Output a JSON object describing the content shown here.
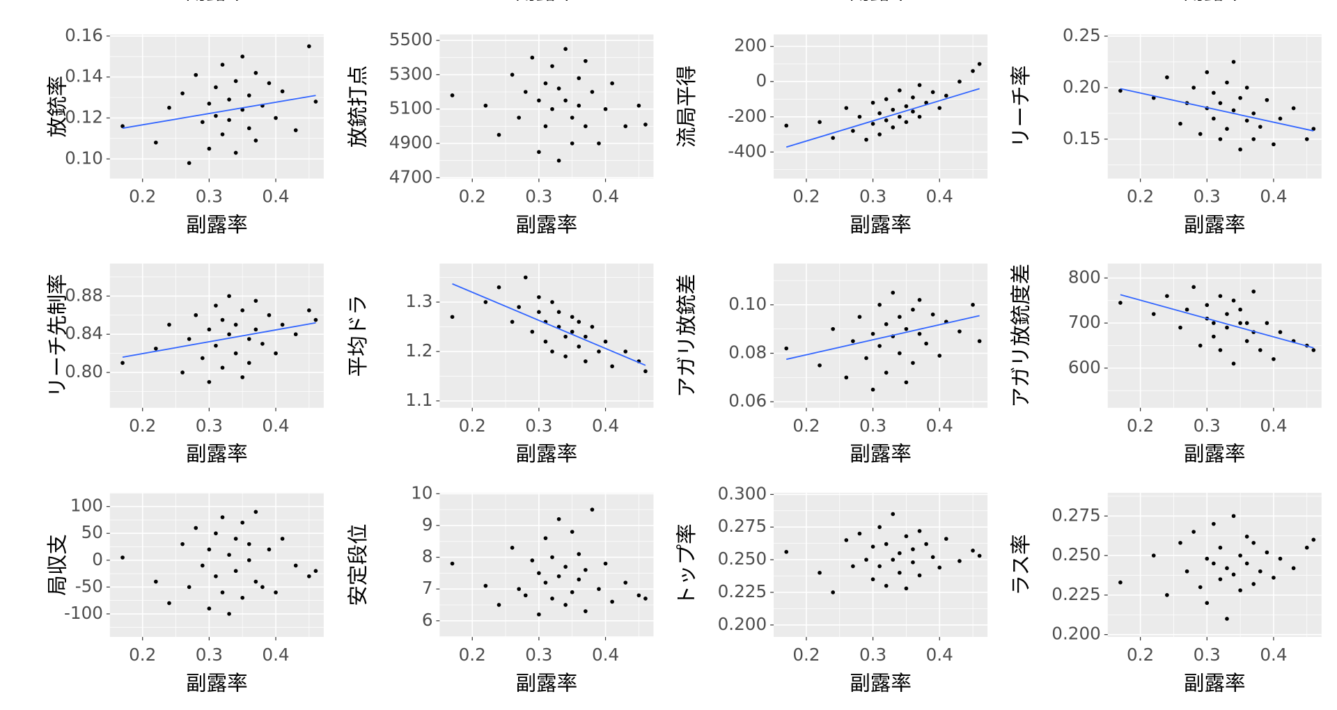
{
  "cropped_top_labels": [
    "副露率",
    "副露率",
    "副露率",
    "副露率"
  ],
  "chart_data": [
    {
      "type": "scatter",
      "x_label": "副露率",
      "y_label": "放銃率",
      "color": "#000000",
      "grid": true,
      "xlim": [
        0.151,
        0.472
      ],
      "xticks": [
        0.2,
        0.3,
        0.4
      ],
      "ylim": [
        0.0904,
        0.1608
      ],
      "yticks": [
        {
          "value": 0.1,
          "label": "0.10"
        },
        0.12,
        0.14,
        0.16
      ],
      "x": [
        0.17,
        0.22,
        0.24,
        0.26,
        0.27,
        0.28,
        0.29,
        0.3,
        0.3,
        0.31,
        0.31,
        0.32,
        0.32,
        0.33,
        0.33,
        0.34,
        0.34,
        0.35,
        0.35,
        0.36,
        0.36,
        0.37,
        0.37,
        0.38,
        0.39,
        0.4,
        0.41,
        0.43,
        0.45,
        0.46
      ],
      "y": [
        0.116,
        0.108,
        0.125,
        0.132,
        0.098,
        0.141,
        0.118,
        0.127,
        0.105,
        0.135,
        0.121,
        0.146,
        0.112,
        0.129,
        0.119,
        0.138,
        0.103,
        0.124,
        0.15,
        0.115,
        0.131,
        0.142,
        0.109,
        0.126,
        0.137,
        0.12,
        0.133,
        0.114,
        0.155,
        0.128
      ],
      "trend": {
        "color": "#3366ff",
        "x": [
          0.17,
          0.46
        ],
        "y": [
          0.115,
          0.131
        ]
      }
    },
    {
      "type": "scatter",
      "x_label": "副露率",
      "y_label": "放銃打点",
      "color": "#000000",
      "grid": true,
      "xlim": [
        0.151,
        0.472
      ],
      "xticks": [
        0.2,
        0.3,
        0.4
      ],
      "ylim": [
        4695,
        5535
      ],
      "yticks": [
        4700,
        4900,
        5100,
        5300,
        5500
      ],
      "x": [
        0.17,
        0.22,
        0.24,
        0.26,
        0.27,
        0.28,
        0.29,
        0.3,
        0.3,
        0.31,
        0.31,
        0.32,
        0.32,
        0.33,
        0.33,
        0.34,
        0.34,
        0.35,
        0.35,
        0.36,
        0.36,
        0.37,
        0.37,
        0.38,
        0.39,
        0.4,
        0.41,
        0.43,
        0.45,
        0.46
      ],
      "y": [
        5180,
        5120,
        4950,
        5300,
        5050,
        5200,
        5400,
        4850,
        5150,
        5250,
        5000,
        5350,
        5100,
        4800,
        5220,
        5150,
        5450,
        5050,
        4900,
        5280,
        5120,
        5380,
        5000,
        5200,
        4900,
        5100,
        5250,
        5000,
        5120,
        5010
      ]
    },
    {
      "type": "scatter",
      "x_label": "副露率",
      "y_label": "流局平得",
      "color": "#000000",
      "grid": true,
      "xlim": [
        0.151,
        0.472
      ],
      "xticks": [
        0.2,
        0.3,
        0.4
      ],
      "ylim": [
        -551,
        268
      ],
      "yticks": [
        -400,
        -200,
        0,
        200
      ],
      "x": [
        0.17,
        0.22,
        0.24,
        0.26,
        0.27,
        0.28,
        0.29,
        0.3,
        0.3,
        0.31,
        0.31,
        0.32,
        0.32,
        0.33,
        0.33,
        0.34,
        0.34,
        0.35,
        0.35,
        0.36,
        0.36,
        0.37,
        0.37,
        0.38,
        0.39,
        0.4,
        0.41,
        0.43,
        0.45,
        0.46
      ],
      "y": [
        -250,
        -230,
        -320,
        -150,
        -280,
        -200,
        -330,
        -120,
        -240,
        -180,
        -300,
        -100,
        -220,
        -160,
        -260,
        -50,
        -200,
        -140,
        -230,
        -90,
        -170,
        -20,
        -200,
        -120,
        -60,
        -150,
        -80,
        0,
        60,
        100
      ],
      "trend": {
        "color": "#3366ff",
        "x": [
          0.17,
          0.46
        ],
        "y": [
          -372,
          -40
        ]
      }
    },
    {
      "type": "scatter",
      "x_label": "副露率",
      "y_label": "リーチ率",
      "color": "#000000",
      "grid": true,
      "xlim": [
        0.151,
        0.472
      ],
      "xticks": [
        0.2,
        0.3,
        0.4
      ],
      "ylim": [
        0.1117,
        0.2517
      ],
      "yticks": [
        0.15,
        {
          "value": 0.2,
          "label": "0.20"
        },
        0.25
      ],
      "x": [
        0.17,
        0.22,
        0.24,
        0.26,
        0.27,
        0.28,
        0.29,
        0.3,
        0.3,
        0.31,
        0.31,
        0.32,
        0.32,
        0.33,
        0.33,
        0.34,
        0.34,
        0.35,
        0.35,
        0.36,
        0.36,
        0.37,
        0.37,
        0.38,
        0.39,
        0.4,
        0.41,
        0.43,
        0.45,
        0.46
      ],
      "y": [
        0.197,
        0.19,
        0.21,
        0.165,
        0.185,
        0.2,
        0.155,
        0.18,
        0.215,
        0.17,
        0.195,
        0.15,
        0.185,
        0.205,
        0.16,
        0.178,
        0.225,
        0.14,
        0.19,
        0.168,
        0.2,
        0.15,
        0.175,
        0.162,
        0.188,
        0.145,
        0.17,
        0.18,
        0.15,
        0.16
      ],
      "trend": {
        "color": "#3366ff",
        "x": [
          0.17,
          0.46
        ],
        "y": [
          0.199,
          0.158
        ]
      }
    },
    {
      "type": "scatter",
      "x_label": "副露率",
      "y_label": "リーチ先制率",
      "color": "#000000",
      "grid": true,
      "xlim": [
        0.151,
        0.472
      ],
      "xticks": [
        0.2,
        0.3,
        0.4
      ],
      "ylim": [
        0.763,
        0.914
      ],
      "yticks": [
        {
          "value": 0.8,
          "label": "0.80"
        },
        0.84,
        0.88
      ],
      "x": [
        0.17,
        0.22,
        0.24,
        0.26,
        0.27,
        0.28,
        0.29,
        0.3,
        0.3,
        0.31,
        0.31,
        0.32,
        0.32,
        0.33,
        0.33,
        0.34,
        0.34,
        0.35,
        0.35,
        0.36,
        0.36,
        0.37,
        0.37,
        0.38,
        0.39,
        0.4,
        0.41,
        0.43,
        0.45,
        0.46
      ],
      "y": [
        0.81,
        0.825,
        0.85,
        0.8,
        0.835,
        0.86,
        0.815,
        0.845,
        0.79,
        0.87,
        0.828,
        0.855,
        0.805,
        0.84,
        0.88,
        0.82,
        0.85,
        0.795,
        0.865,
        0.835,
        0.81,
        0.875,
        0.845,
        0.83,
        0.86,
        0.82,
        0.85,
        0.84,
        0.865,
        0.855
      ],
      "trend": {
        "color": "#3366ff",
        "x": [
          0.17,
          0.46
        ],
        "y": [
          0.816,
          0.852
        ]
      }
    },
    {
      "type": "scatter",
      "x_label": "副露率",
      "y_label": "平均ドラ",
      "color": "#000000",
      "grid": true,
      "xlim": [
        0.151,
        0.472
      ],
      "xticks": [
        0.2,
        0.3,
        0.4
      ],
      "ylim": [
        1.086,
        1.378
      ],
      "yticks": [
        1.1,
        1.2,
        1.3
      ],
      "x": [
        0.17,
        0.22,
        0.24,
        0.26,
        0.27,
        0.28,
        0.29,
        0.3,
        0.3,
        0.31,
        0.31,
        0.32,
        0.32,
        0.33,
        0.33,
        0.34,
        0.34,
        0.35,
        0.35,
        0.36,
        0.36,
        0.37,
        0.37,
        0.38,
        0.39,
        0.4,
        0.41,
        0.43,
        0.45,
        0.46
      ],
      "y": [
        1.27,
        1.3,
        1.33,
        1.26,
        1.29,
        1.35,
        1.24,
        1.28,
        1.31,
        1.22,
        1.26,
        1.3,
        1.2,
        1.25,
        1.28,
        1.23,
        1.19,
        1.27,
        1.24,
        1.21,
        1.26,
        1.18,
        1.23,
        1.25,
        1.2,
        1.22,
        1.17,
        1.2,
        1.18,
        1.16
      ],
      "trend": {
        "color": "#3366ff",
        "x": [
          0.17,
          0.46
        ],
        "y": [
          1.337,
          1.172
        ]
      }
    },
    {
      "type": "scatter",
      "x_label": "副露率",
      "y_label": "アガリ放銃差",
      "color": "#000000",
      "grid": true,
      "xlim": [
        0.151,
        0.472
      ],
      "xticks": [
        0.2,
        0.3,
        0.4
      ],
      "ylim": [
        0.0575,
        0.117
      ],
      "yticks": [
        0.06,
        0.08,
        {
          "value": 0.1,
          "label": "0.10"
        }
      ],
      "x": [
        0.17,
        0.22,
        0.24,
        0.26,
        0.27,
        0.28,
        0.29,
        0.3,
        0.3,
        0.31,
        0.31,
        0.32,
        0.32,
        0.33,
        0.33,
        0.34,
        0.34,
        0.35,
        0.35,
        0.36,
        0.36,
        0.37,
        0.37,
        0.38,
        0.39,
        0.4,
        0.41,
        0.43,
        0.45,
        0.46
      ],
      "y": [
        0.082,
        0.075,
        0.09,
        0.07,
        0.085,
        0.095,
        0.078,
        0.088,
        0.065,
        0.1,
        0.083,
        0.092,
        0.072,
        0.087,
        0.105,
        0.08,
        0.095,
        0.068,
        0.09,
        0.098,
        0.076,
        0.102,
        0.088,
        0.084,
        0.096,
        0.079,
        0.093,
        0.089,
        0.1,
        0.085
      ],
      "trend": {
        "color": "#3366ff",
        "x": [
          0.17,
          0.46
        ],
        "y": [
          0.0775,
          0.0955
        ]
      }
    },
    {
      "type": "scatter",
      "x_label": "副露率",
      "y_label": "アガリ放銃度差",
      "color": "#000000",
      "grid": true,
      "xlim": [
        0.151,
        0.472
      ],
      "xticks": [
        0.2,
        0.3,
        0.4
      ],
      "ylim": [
        512,
        832
      ],
      "yticks": [
        600,
        700,
        800
      ],
      "x": [
        0.17,
        0.22,
        0.24,
        0.26,
        0.27,
        0.28,
        0.29,
        0.3,
        0.3,
        0.31,
        0.31,
        0.32,
        0.32,
        0.33,
        0.33,
        0.34,
        0.34,
        0.35,
        0.35,
        0.36,
        0.36,
        0.37,
        0.37,
        0.38,
        0.39,
        0.4,
        0.41,
        0.43,
        0.45,
        0.46
      ],
      "y": [
        745,
        720,
        760,
        690,
        730,
        780,
        650,
        710,
        740,
        670,
        700,
        760,
        640,
        720,
        690,
        750,
        610,
        700,
        730,
        660,
        700,
        770,
        680,
        640,
        700,
        620,
        680,
        660,
        650,
        640
      ],
      "trend": {
        "color": "#3366ff",
        "x": [
          0.17,
          0.46
        ],
        "y": [
          763,
          645
        ]
      }
    },
    {
      "type": "scatter",
      "x_label": "副露率",
      "y_label": "局収支",
      "color": "#000000",
      "grid": true,
      "xlim": [
        0.151,
        0.472
      ],
      "xticks": [
        0.2,
        0.3,
        0.4
      ],
      "ylim": [
        -143,
        125.6
      ],
      "yticks": [
        -100,
        -50,
        0,
        50,
        100
      ],
      "x": [
        0.17,
        0.22,
        0.24,
        0.26,
        0.27,
        0.28,
        0.29,
        0.3,
        0.3,
        0.31,
        0.31,
        0.32,
        0.32,
        0.33,
        0.33,
        0.34,
        0.34,
        0.35,
        0.35,
        0.36,
        0.36,
        0.37,
        0.37,
        0.38,
        0.39,
        0.4,
        0.41,
        0.43,
        0.45,
        0.46
      ],
      "y": [
        5,
        -40,
        -80,
        30,
        -50,
        60,
        -10,
        -90,
        20,
        50,
        -30,
        80,
        -60,
        10,
        -100,
        40,
        -20,
        70,
        -70,
        0,
        30,
        -40,
        90,
        -50,
        20,
        -60,
        40,
        -10,
        -30,
        -20
      ]
    },
    {
      "type": "scatter",
      "x_label": "副露率",
      "y_label": "安定段位",
      "color": "#000000",
      "grid": true,
      "xlim": [
        0.151,
        0.472
      ],
      "xticks": [
        0.2,
        0.3,
        0.4
      ],
      "ylim": [
        5.49,
        10.03
      ],
      "yticks": [
        6,
        7,
        8,
        9,
        10
      ],
      "x": [
        0.17,
        0.22,
        0.24,
        0.26,
        0.27,
        0.28,
        0.29,
        0.3,
        0.3,
        0.31,
        0.31,
        0.32,
        0.32,
        0.33,
        0.33,
        0.34,
        0.34,
        0.35,
        0.35,
        0.36,
        0.36,
        0.37,
        0.37,
        0.38,
        0.39,
        0.4,
        0.41,
        0.43,
        0.45,
        0.46
      ],
      "y": [
        7.8,
        7.1,
        6.5,
        8.3,
        7.0,
        6.8,
        7.9,
        6.2,
        7.5,
        8.6,
        7.2,
        6.7,
        8.0,
        7.4,
        9.2,
        6.5,
        7.7,
        8.8,
        6.9,
        7.3,
        8.1,
        6.3,
        7.6,
        9.5,
        7.0,
        7.8,
        6.6,
        7.2,
        6.8,
        6.7
      ]
    },
    {
      "type": "scatter",
      "x_label": "副露率",
      "y_label": "トップ率",
      "color": "#000000",
      "grid": true,
      "xlim": [
        0.151,
        0.472
      ],
      "xticks": [
        0.2,
        0.3,
        0.4
      ],
      "ylim": [
        0.1908,
        0.3013
      ],
      "yticks": [
        {
          "value": 0.2,
          "label": "0.200"
        },
        0.225,
        {
          "value": 0.25,
          "label": "0.250"
        },
        0.275,
        {
          "value": 0.3,
          "label": "0.300"
        }
      ],
      "x": [
        0.17,
        0.22,
        0.24,
        0.26,
        0.27,
        0.28,
        0.29,
        0.3,
        0.3,
        0.31,
        0.31,
        0.32,
        0.32,
        0.33,
        0.33,
        0.34,
        0.34,
        0.35,
        0.35,
        0.36,
        0.36,
        0.37,
        0.37,
        0.38,
        0.39,
        0.4,
        0.41,
        0.43,
        0.45,
        0.46
      ],
      "y": [
        0.256,
        0.24,
        0.225,
        0.265,
        0.245,
        0.27,
        0.25,
        0.235,
        0.26,
        0.275,
        0.245,
        0.23,
        0.262,
        0.25,
        0.285,
        0.24,
        0.255,
        0.268,
        0.228,
        0.258,
        0.248,
        0.272,
        0.238,
        0.262,
        0.252,
        0.244,
        0.266,
        0.249,
        0.257,
        0.253
      ]
    },
    {
      "type": "scatter",
      "x_label": "副露率",
      "y_label": "ラス率",
      "color": "#000000",
      "grid": true,
      "xlim": [
        0.151,
        0.472
      ],
      "xticks": [
        0.2,
        0.3,
        0.4
      ],
      "ylim": [
        0.1985,
        0.2897
      ],
      "yticks": [
        {
          "value": 0.2,
          "label": "0.200"
        },
        0.225,
        {
          "value": 0.25,
          "label": "0.250"
        },
        0.275
      ],
      "x": [
        0.17,
        0.22,
        0.24,
        0.26,
        0.27,
        0.28,
        0.29,
        0.3,
        0.3,
        0.31,
        0.31,
        0.32,
        0.32,
        0.33,
        0.33,
        0.34,
        0.34,
        0.35,
        0.35,
        0.36,
        0.36,
        0.37,
        0.37,
        0.38,
        0.39,
        0.4,
        0.41,
        0.43,
        0.45,
        0.46
      ],
      "y": [
        0.233,
        0.25,
        0.225,
        0.258,
        0.24,
        0.265,
        0.23,
        0.248,
        0.22,
        0.27,
        0.245,
        0.235,
        0.255,
        0.21,
        0.242,
        0.275,
        0.238,
        0.25,
        0.228,
        0.262,
        0.245,
        0.232,
        0.258,
        0.24,
        0.252,
        0.236,
        0.248,
        0.242,
        0.255,
        0.26
      ]
    }
  ]
}
